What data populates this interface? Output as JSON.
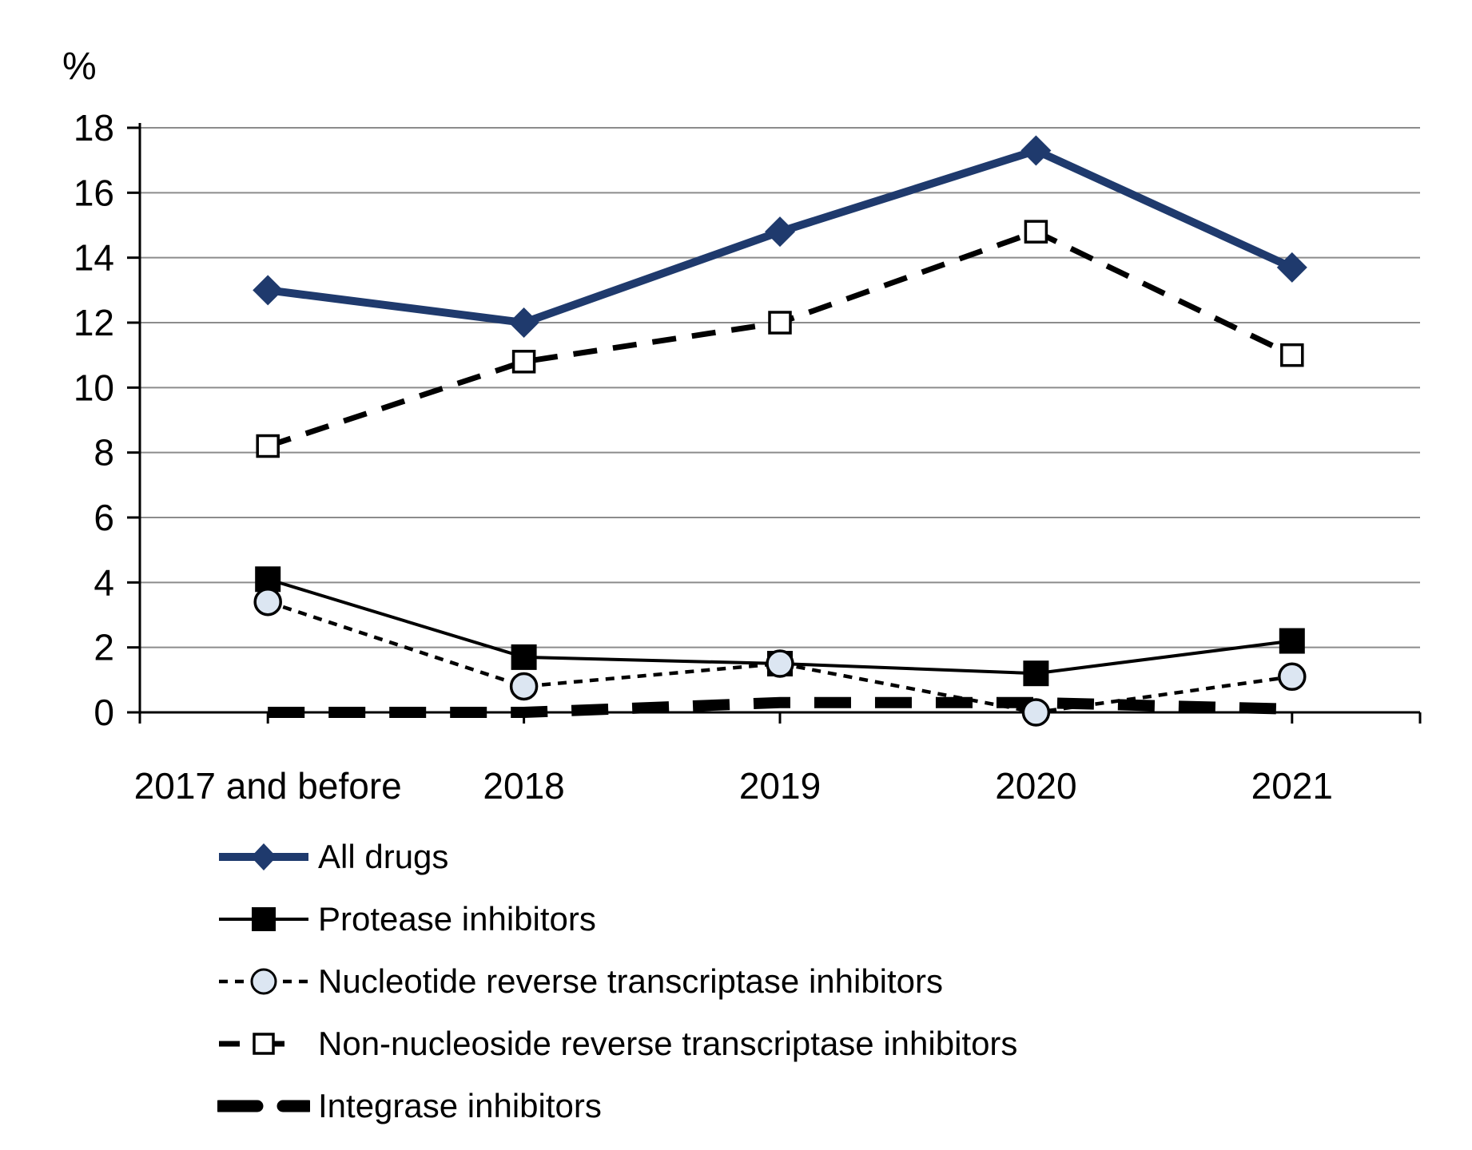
{
  "chart_data": {
    "type": "line",
    "title": "",
    "y_axis_title": "%",
    "xlabel": "",
    "ylabel": "%",
    "categories": [
      "2017 and before",
      "2018",
      "2019",
      "2020",
      "2021"
    ],
    "ylim": [
      0,
      18
    ],
    "ytick_step": 2,
    "yticks": [
      0,
      2,
      4,
      6,
      8,
      10,
      12,
      14,
      16,
      18
    ],
    "grid": "horizontal",
    "gridline_color": "#8c8c8c",
    "axis_color": "#000000",
    "legend_position": "bottom-left",
    "series": [
      {
        "name": "All drugs",
        "values": [
          13.0,
          12.0,
          14.8,
          17.3,
          13.7
        ],
        "color": "#1f3a6d",
        "line": "solid-thick",
        "marker": "diamond-filled"
      },
      {
        "name": "Protease inhibitors",
        "values": [
          4.1,
          1.7,
          1.5,
          1.2,
          2.2
        ],
        "color": "#000000",
        "line": "solid-thin",
        "marker": "square-filled"
      },
      {
        "name": "Nucleotide reverse transcriptase inhibitors",
        "values": [
          3.4,
          0.8,
          1.5,
          0.0,
          1.1
        ],
        "color": "#000000",
        "line": "dotted",
        "marker": "circle-open",
        "marker_fill": "#dce6f2"
      },
      {
        "name": "Non-nucleoside reverse transcriptase inhibitors",
        "values": [
          8.2,
          10.8,
          12.0,
          14.8,
          11.0
        ],
        "color": "#000000",
        "line": "dashed",
        "marker": "square-open",
        "marker_fill": "#ffffff"
      },
      {
        "name": "Integrase inhibitors",
        "values": [
          0.0,
          0.0,
          0.3,
          0.3,
          0.1
        ],
        "color": "#000000",
        "line": "dashed-thick",
        "marker": "none"
      }
    ]
  }
}
